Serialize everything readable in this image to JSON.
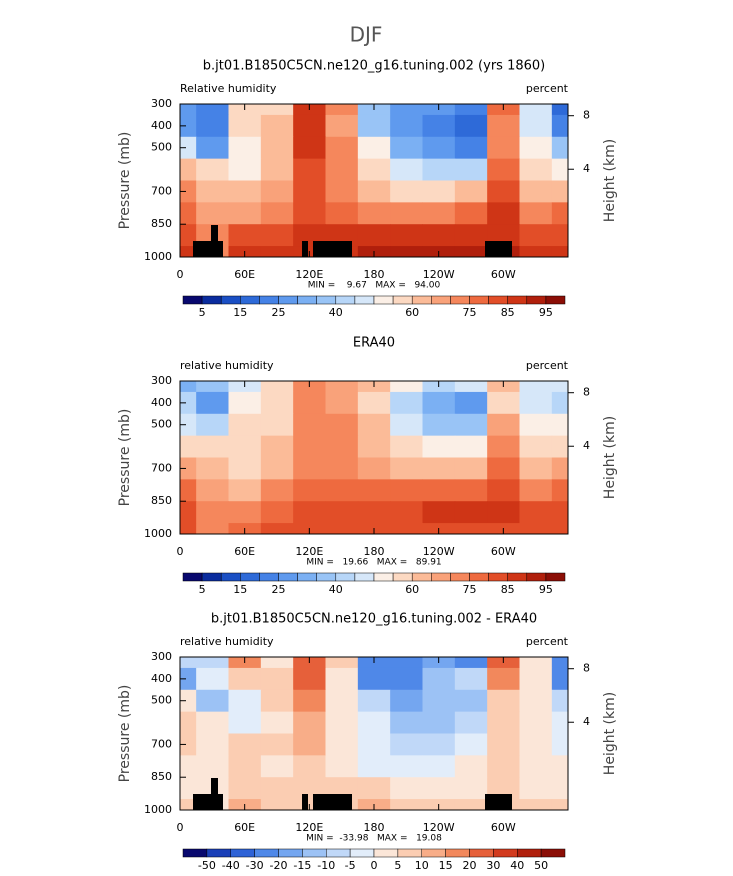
{
  "title": "DJF",
  "chart_data": [
    {
      "type": "contour",
      "title": "b.jt01.B1850C5CN.ne120_g16.tuning.002 (yrs 1860)",
      "left_label": "Relative humidity",
      "right_label": "percent",
      "ylabel": "Pressure (mb)",
      "y2label": "Height (km)",
      "stats": "MIN =    9.67   MAX =   94.00",
      "xlim": [
        0,
        360
      ],
      "xticks": [
        0,
        {
          "value": 60,
          "label": "60E"
        },
        {
          "value": 120,
          "label": "120E"
        },
        180,
        {
          "value": 240,
          "label": "120W"
        },
        {
          "value": 300,
          "label": "60W"
        }
      ],
      "ylim": [
        1000,
        300
      ],
      "yticks": [
        300,
        400,
        500,
        700,
        850,
        1000
      ],
      "y2ticks": [
        8,
        4
      ],
      "x": [
        0,
        30,
        60,
        90,
        120,
        150,
        180,
        210,
        240,
        270,
        300,
        330,
        360
      ],
      "p": [
        300,
        400,
        500,
        600,
        700,
        800,
        900,
        1000
      ],
      "z": [
        [
          25,
          20,
          55,
          55,
          85,
          70,
          35,
          25,
          25,
          20,
          75,
          45,
          15
        ],
        [
          25,
          20,
          55,
          60,
          85,
          65,
          35,
          25,
          20,
          15,
          70,
          45,
          20
        ],
        [
          45,
          25,
          50,
          60,
          85,
          70,
          50,
          30,
          25,
          20,
          70,
          50,
          35
        ],
        [
          60,
          55,
          50,
          60,
          80,
          70,
          55,
          45,
          40,
          40,
          75,
          55,
          50
        ],
        [
          70,
          60,
          60,
          65,
          80,
          70,
          60,
          55,
          55,
          60,
          80,
          60,
          60
        ],
        [
          75,
          65,
          65,
          70,
          80,
          75,
          70,
          70,
          70,
          75,
          85,
          70,
          75
        ],
        [
          80,
          70,
          80,
          80,
          85,
          85,
          85,
          85,
          85,
          85,
          85,
          80,
          80
        ],
        [
          85,
          70,
          85,
          85,
          85,
          85,
          90,
          90,
          90,
          90,
          90,
          85,
          85
        ]
      ],
      "levels": [
        5,
        10,
        15,
        20,
        25,
        30,
        35,
        40,
        45,
        50,
        55,
        60,
        65,
        70,
        75,
        80,
        85,
        90,
        95
      ],
      "colors": [
        "#08086e",
        "#0a2c9e",
        "#1a4fc4",
        "#2e6ad8",
        "#4582e6",
        "#5f9aee",
        "#7bb0f3",
        "#99c4f6",
        "#b7d6f8",
        "#d6e7f9",
        "#fbefe6",
        "#fcd9c2",
        "#fbbb98",
        "#f9a27a",
        "#f5875c",
        "#ee6a3f",
        "#e24e28",
        "#cf3516",
        "#b01f0c",
        "#8b0e06"
      ],
      "colorbar_labels": [
        5,
        15,
        25,
        40,
        60,
        75,
        85,
        95
      ]
    },
    {
      "type": "contour",
      "title": "ERA40",
      "left_label": "relative humidity",
      "right_label": "percent",
      "ylabel": "Pressure (mb)",
      "y2label": "Height (km)",
      "stats": "MIN =   19.66   MAX =   89.91",
      "xlim": [
        0,
        360
      ],
      "xticks": [
        0,
        {
          "value": 60,
          "label": "60E"
        },
        {
          "value": 120,
          "label": "120E"
        },
        180,
        {
          "value": 240,
          "label": "120W"
        },
        {
          "value": 300,
          "label": "60W"
        }
      ],
      "ylim": [
        1000,
        300
      ],
      "yticks": [
        300,
        400,
        500,
        700,
        850,
        1000
      ],
      "y2ticks": [
        8,
        4
      ],
      "x": [
        0,
        30,
        60,
        90,
        120,
        150,
        180,
        210,
        240,
        270,
        300,
        330,
        360
      ],
      "p": [
        300,
        400,
        500,
        600,
        700,
        800,
        900,
        1000
      ],
      "z": [
        [
          30,
          35,
          45,
          55,
          70,
          65,
          60,
          50,
          40,
          45,
          60,
          45,
          45
        ],
        [
          40,
          25,
          50,
          55,
          70,
          65,
          55,
          40,
          30,
          25,
          55,
          45,
          40
        ],
        [
          45,
          40,
          55,
          55,
          70,
          70,
          60,
          45,
          35,
          35,
          65,
          50,
          50
        ],
        [
          55,
          55,
          55,
          60,
          70,
          70,
          60,
          55,
          50,
          50,
          70,
          55,
          55
        ],
        [
          65,
          60,
          55,
          60,
          70,
          70,
          65,
          60,
          60,
          60,
          75,
          60,
          65
        ],
        [
          75,
          65,
          60,
          70,
          75,
          75,
          75,
          75,
          75,
          75,
          80,
          70,
          75
        ],
        [
          80,
          70,
          70,
          75,
          80,
          80,
          80,
          80,
          85,
          85,
          85,
          80,
          80
        ],
        [
          80,
          70,
          75,
          80,
          80,
          80,
          80,
          80,
          80,
          80,
          80,
          80,
          80
        ]
      ],
      "levels": [
        5,
        10,
        15,
        20,
        25,
        30,
        35,
        40,
        45,
        50,
        55,
        60,
        65,
        70,
        75,
        80,
        85,
        90,
        95
      ],
      "colors": [
        "#08086e",
        "#0a2c9e",
        "#1a4fc4",
        "#2e6ad8",
        "#4582e6",
        "#5f9aee",
        "#7bb0f3",
        "#99c4f6",
        "#b7d6f8",
        "#d6e7f9",
        "#fbefe6",
        "#fcd9c2",
        "#fbbb98",
        "#f9a27a",
        "#f5875c",
        "#ee6a3f",
        "#e24e28",
        "#cf3516",
        "#b01f0c",
        "#8b0e06"
      ],
      "colorbar_labels": [
        5,
        15,
        25,
        40,
        60,
        75,
        85,
        95
      ]
    },
    {
      "type": "contour",
      "title": "b.jt01.B1850C5CN.ne120_g16.tuning.002 - ERA40",
      "left_label": "relative humidity",
      "right_label": "percent",
      "ylabel": "Pressure (mb)",
      "y2label": "Height (km)",
      "stats": "MIN =  -33.98   MAX =   19.08",
      "xlim": [
        0,
        360
      ],
      "xticks": [
        0,
        {
          "value": 60,
          "label": "60E"
        },
        {
          "value": 120,
          "label": "120E"
        },
        180,
        {
          "value": 240,
          "label": "120W"
        },
        {
          "value": 300,
          "label": "60W"
        }
      ],
      "ylim": [
        1000,
        300
      ],
      "yticks": [
        300,
        400,
        500,
        700,
        850,
        1000
      ],
      "y2ticks": [
        8,
        4
      ],
      "x": [
        0,
        30,
        60,
        90,
        120,
        150,
        180,
        210,
        240,
        270,
        300,
        330,
        360
      ],
      "p": [
        300,
        400,
        500,
        600,
        700,
        800,
        900,
        1000
      ],
      "z": [
        [
          -10,
          -10,
          15,
          0,
          20,
          5,
          -25,
          -25,
          -20,
          -25,
          20,
          0,
          -30
        ],
        [
          -20,
          -5,
          5,
          5,
          20,
          0,
          -25,
          -25,
          -15,
          -10,
          15,
          0,
          -25
        ],
        [
          0,
          -15,
          -5,
          5,
          15,
          0,
          -10,
          -20,
          -15,
          -15,
          5,
          0,
          -10
        ],
        [
          5,
          0,
          -5,
          0,
          10,
          0,
          -5,
          -15,
          -15,
          -10,
          5,
          0,
          -5
        ],
        [
          5,
          0,
          5,
          5,
          10,
          0,
          -5,
          -10,
          -10,
          -5,
          5,
          0,
          -5
        ],
        [
          0,
          0,
          5,
          0,
          5,
          0,
          -5,
          -5,
          -5,
          0,
          5,
          0,
          0
        ],
        [
          0,
          0,
          5,
          5,
          5,
          5,
          5,
          0,
          0,
          0,
          5,
          0,
          0
        ],
        [
          5,
          0,
          10,
          5,
          5,
          5,
          10,
          5,
          5,
          5,
          5,
          5,
          5
        ]
      ],
      "levels": [
        -50,
        -40,
        -30,
        -20,
        -15,
        -10,
        -5,
        0,
        5,
        10,
        15,
        20,
        30,
        40,
        50
      ],
      "colors": [
        "#08086e",
        "#1a3fb8",
        "#2e62d6",
        "#4f88e8",
        "#74a6f0",
        "#9cc2f5",
        "#c0d8f8",
        "#e2edfa",
        "#fbe6d8",
        "#fbcdb2",
        "#f8ad88",
        "#f2885c",
        "#e6603a",
        "#d23a1e",
        "#b01f0c",
        "#8b0e06"
      ],
      "colorbar_labels": [
        -50,
        -40,
        -30,
        -20,
        -15,
        -10,
        -5,
        0,
        5,
        10,
        15,
        20,
        30,
        40,
        50
      ]
    }
  ]
}
